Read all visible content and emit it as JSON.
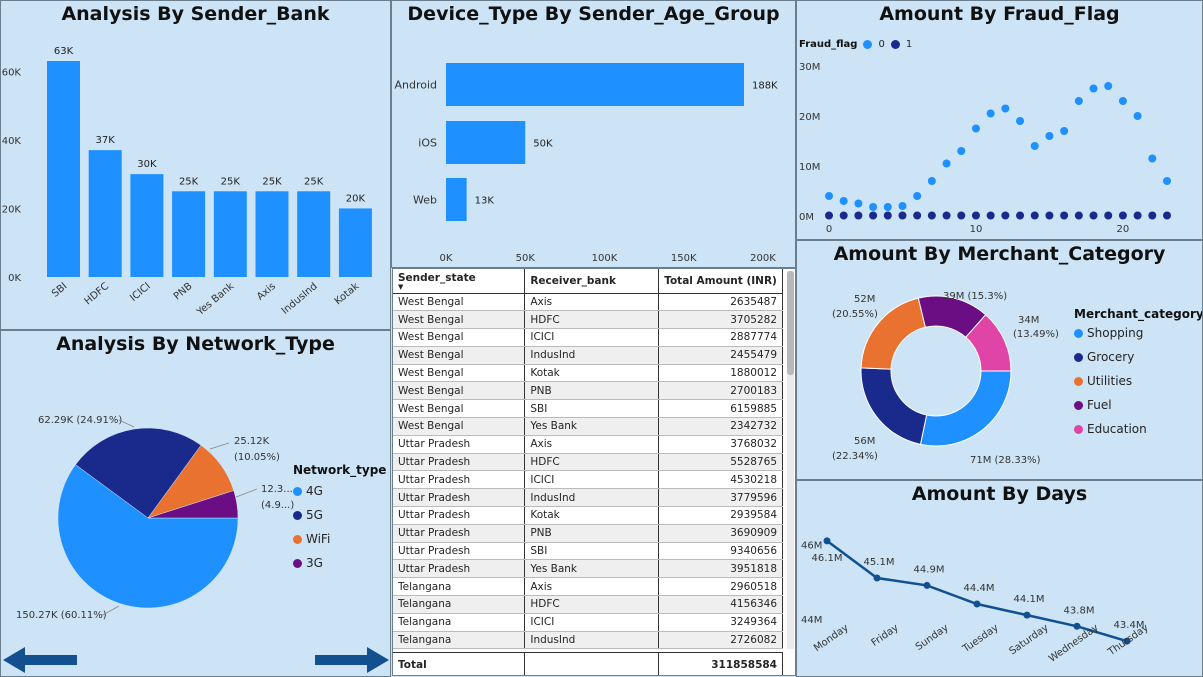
{
  "colors": {
    "primary": "#1e90ff",
    "dark": "#1a2a8c",
    "orange": "#ea7230",
    "purple": "#6b0d83",
    "pink": "#e044a7",
    "line": "#13508f"
  },
  "sender_bank": {
    "title": "Analysis By Sender_Bank",
    "yticks": [
      "0K",
      "20K",
      "40K",
      "60K"
    ],
    "chart_data": {
      "type": "bar",
      "categories": [
        "SBI",
        "HDFC",
        "ICICI",
        "PNB",
        "Yes Bank",
        "Axis",
        "IndusInd",
        "Kotak"
      ],
      "values": [
        63,
        37,
        30,
        25,
        25,
        25,
        25,
        20
      ],
      "labels": [
        "63K",
        "37K",
        "30K",
        "25K",
        "25K",
        "25K",
        "25K",
        "20K"
      ],
      "ylim": [
        0,
        70
      ]
    }
  },
  "device_type": {
    "title": "Device_Type By Sender_Age_Group",
    "xticks": [
      "0K",
      "50K",
      "100K",
      "150K",
      "200K"
    ],
    "chart_data": {
      "type": "bar",
      "categories": [
        "Android",
        "iOS",
        "Web"
      ],
      "values": [
        188,
        50,
        13
      ],
      "labels": [
        "188K",
        "50K",
        "13K"
      ],
      "xlim": [
        0,
        200
      ]
    }
  },
  "fraud_flag": {
    "title": "Amount By Fraud_Flag",
    "legend_title": "Fraud_flag",
    "yticks": [
      "0M",
      "10M",
      "20M",
      "30M"
    ],
    "xticks": [
      "0",
      "10",
      "20"
    ],
    "chart_data": {
      "type": "scatter",
      "ylim": [
        0,
        30
      ],
      "xlim": [
        0,
        23
      ],
      "series": [
        {
          "name": "0",
          "x": [
            0,
            1,
            2,
            3,
            4,
            5,
            6,
            7,
            8,
            9,
            10,
            11,
            12,
            13,
            14,
            15,
            16,
            17,
            18,
            19,
            20,
            21,
            22,
            23
          ],
          "y": [
            4,
            3,
            2.5,
            1.8,
            1.8,
            2,
            4,
            7,
            10.5,
            13,
            17.5,
            20.5,
            21.5,
            19,
            14,
            16,
            17,
            23,
            25.5,
            26,
            23,
            20,
            11.5,
            7
          ]
        },
        {
          "name": "1",
          "x": [
            0,
            1,
            2,
            3,
            4,
            5,
            6,
            7,
            8,
            9,
            10,
            11,
            12,
            13,
            14,
            15,
            16,
            17,
            18,
            19,
            20,
            21,
            22,
            23
          ],
          "y": [
            0.1,
            0.1,
            0.1,
            0.1,
            0.1,
            0.1,
            0.1,
            0.1,
            0.1,
            0.1,
            0.1,
            0.1,
            0.1,
            0.1,
            0.1,
            0.1,
            0.1,
            0.1,
            0.1,
            0.1,
            0.1,
            0.1,
            0.1,
            0.1
          ]
        }
      ]
    }
  },
  "network_type": {
    "title": "Analysis By Network_Type",
    "legend_title": "Network_type",
    "chart_data": {
      "type": "pie",
      "categories": [
        "4G",
        "5G",
        "WiFi",
        "3G"
      ],
      "values": [
        60.11,
        24.91,
        10.05,
        4.93
      ],
      "labels": [
        "150.27K (60.11%)",
        "62.29K (24.91%)",
        "25.12K",
        "(10.05%)",
        "12.3...",
        "(4.9...)"
      ]
    }
  },
  "merchant": {
    "title": "Amount By Merchant_Category",
    "legend_title": "Merchant_category",
    "chart_data": {
      "type": "pie",
      "categories": [
        "Shopping",
        "Grocery",
        "Utilities",
        "Fuel",
        "Education"
      ],
      "values": [
        28.33,
        22.34,
        20.55,
        15.3,
        13.49
      ],
      "labels": [
        "71M (28.33%)",
        "56M",
        "(22.34%)",
        "52M",
        "(20.55%)",
        "39M (15.3%)",
        "34M",
        "(13.49%)"
      ]
    }
  },
  "days": {
    "title": "Amount By Days",
    "yticks": [
      "44M",
      "46M"
    ],
    "chart_data": {
      "type": "line",
      "categories": [
        "Monday",
        "Friday",
        "Sunday",
        "Tuesday",
        "Saturday",
        "Wednesday",
        "Thursday"
      ],
      "values": [
        46.1,
        45.1,
        44.9,
        44.4,
        44.1,
        43.8,
        43.4
      ],
      "labels": [
        "46.1M",
        "45.1M",
        "44.9M",
        "44.4M",
        "44.1M",
        "43.8M",
        "43.4M"
      ],
      "ylim": [
        43,
        46.5
      ]
    }
  },
  "table": {
    "headers": [
      "Sender_state",
      "Receiver_bank",
      "Total Amount (INR)"
    ],
    "rows": [
      [
        "West Bengal",
        "Axis",
        "2635487"
      ],
      [
        "West Bengal",
        "HDFC",
        "3705282"
      ],
      [
        "West Bengal",
        "ICICI",
        "2887774"
      ],
      [
        "West Bengal",
        "IndusInd",
        "2455479"
      ],
      [
        "West Bengal",
        "Kotak",
        "1880012"
      ],
      [
        "West Bengal",
        "PNB",
        "2700183"
      ],
      [
        "West Bengal",
        "SBI",
        "6159885"
      ],
      [
        "West Bengal",
        "Yes Bank",
        "2342732"
      ],
      [
        "Uttar Pradesh",
        "Axis",
        "3768032"
      ],
      [
        "Uttar Pradesh",
        "HDFC",
        "5528765"
      ],
      [
        "Uttar Pradesh",
        "ICICI",
        "4530218"
      ],
      [
        "Uttar Pradesh",
        "IndusInd",
        "3779596"
      ],
      [
        "Uttar Pradesh",
        "Kotak",
        "2939584"
      ],
      [
        "Uttar Pradesh",
        "PNB",
        "3690909"
      ],
      [
        "Uttar Pradesh",
        "SBI",
        "9340656"
      ],
      [
        "Uttar Pradesh",
        "Yes Bank",
        "3951818"
      ],
      [
        "Telangana",
        "Axis",
        "2960518"
      ],
      [
        "Telangana",
        "HDFC",
        "4156346"
      ],
      [
        "Telangana",
        "ICICI",
        "3249364"
      ],
      [
        "Telangana",
        "IndusInd",
        "2726082"
      ]
    ],
    "total_label": "Total",
    "total_value": "311858584"
  }
}
